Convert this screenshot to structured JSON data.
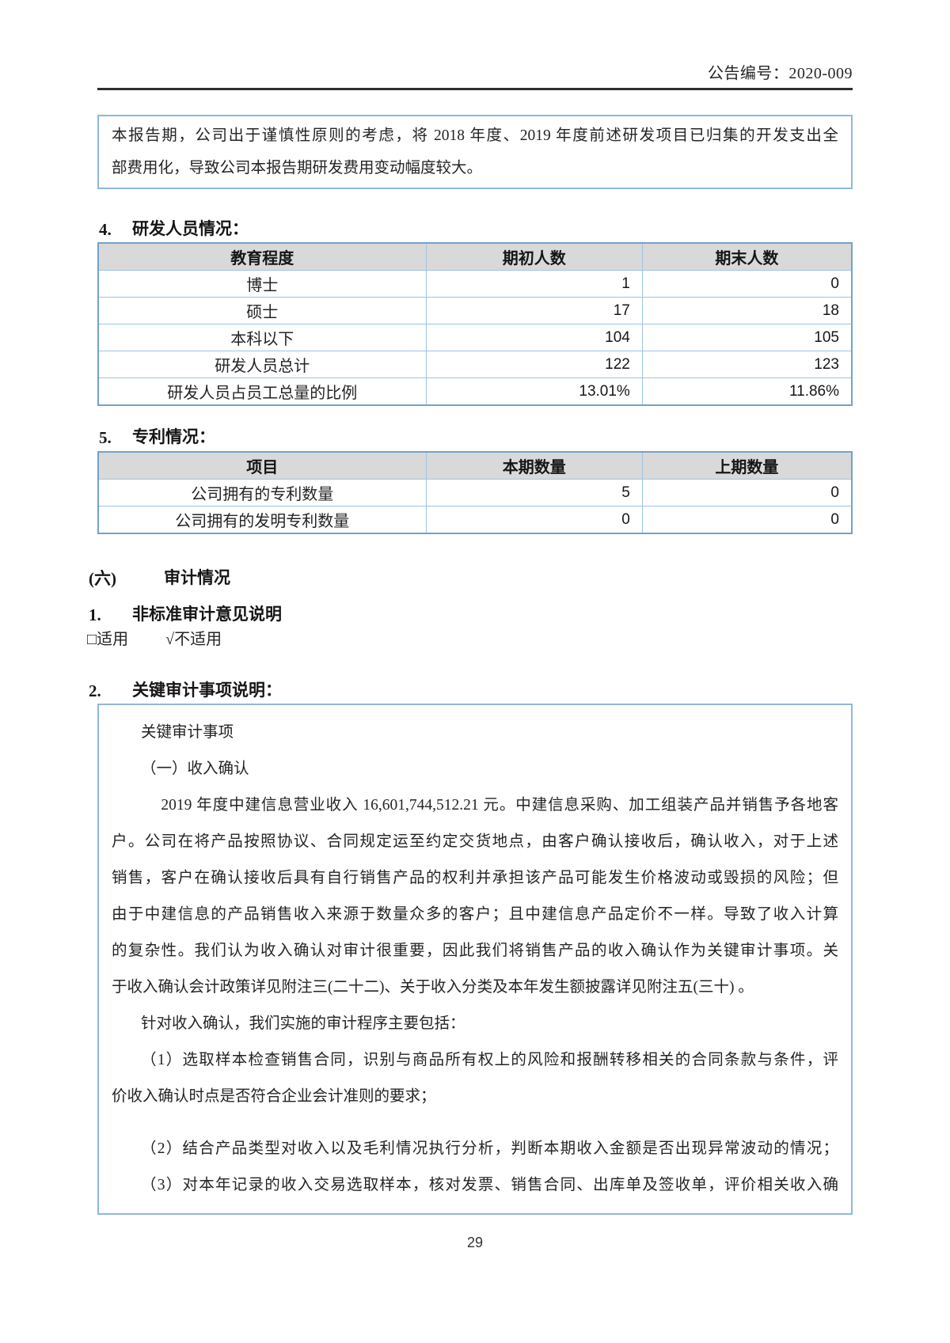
{
  "page": {
    "header_right": "公告编号：2020-009",
    "page_number": "29",
    "accent_border_color": "#8fb8dd",
    "table_header_bg": "#d9d9d9"
  },
  "notice_box": {
    "lines": [
      {
        "text": "本报告期，公司出于谨慎性原则的考虑，将 2018 年度、2019 年度前述研发项目已归集的开发支出全",
        "fill": true
      },
      {
        "text": "部费用化，导致公司本报告期研发费用变动幅度较大。"
      }
    ]
  },
  "section_rd_personnel": {
    "number": "4.",
    "title": "研发人员情况：",
    "table": {
      "headers": [
        "教育程度",
        "期初人数",
        "期末人数"
      ],
      "rows": [
        [
          "博士",
          "1",
          "0"
        ],
        [
          "硕士",
          "17",
          "18"
        ],
        [
          "本科以下",
          "104",
          "105"
        ],
        [
          "研发人员总计",
          "122",
          "123"
        ],
        [
          "研发人员占员工总量的比例",
          "13.01%",
          "11.86%"
        ]
      ]
    }
  },
  "section_patents": {
    "number": "5.",
    "title": "专利情况：",
    "table": {
      "headers": [
        "项目",
        "本期数量",
        "上期数量"
      ],
      "rows": [
        [
          "公司拥有的专利数量",
          "5",
          "0"
        ],
        [
          "公司拥有的发明专利数量",
          "0",
          "0"
        ]
      ]
    }
  },
  "section_audit": {
    "number": "(六)",
    "title": "审计情况"
  },
  "sub_nonstandard_opinion": {
    "number": "1.",
    "title": "非标准审计意见说明",
    "option_applicable": "□适用",
    "option_not_applicable": "√不适用"
  },
  "sub_key_audit_matters": {
    "number": "2.",
    "title": "关键审计事项说明："
  },
  "audit_box": {
    "lines": [
      {
        "text": "关键审计事项",
        "ind": 1.9
      },
      {
        "text": "（一）收入确认",
        "ind": 1.9
      },
      {
        "text": "2019 年度中建信息营业收入 16,601,744,512.21 元。中建信息采购、加工组装产品并销售予各地客",
        "ind": 3.2,
        "fill": true
      },
      {
        "text": "户。公司在将产品按照协议、合同规定运至约定交货地点，由客户确认接收后，确认收入，对于上述",
        "fill": true
      },
      {
        "text": "销售，客户在确认接收后具有自行销售产品的权利并承担该产品可能发生价格波动或毁损的风险；但",
        "fill": true
      },
      {
        "text": "由于中建信息的产品销售收入来源于数量众多的客户；且中建信息产品定价不一样。导致了收入计算",
        "fill": true
      },
      {
        "text": "的复杂性。我们认为收入确认对审计很重要，因此我们将销售产品的收入确认作为关键审计事项。关",
        "fill": true
      },
      {
        "text": "于收入确认会计政策详见附注三(二十二)、关于收入分类及本年发生额披露详见附注五(三十) 。"
      },
      {
        "text": "针对收入确认，我们实施的审计程序主要包括：",
        "ind": 1.9
      },
      {
        "text": "（1）选取样本检查销售合同，识别与商品所有权上的风险和报酬转移相关的合同条款与条件，评",
        "ind": 1.9,
        "fill": true
      },
      {
        "text": "价收入确认时点是否符合企业会计准则的要求；"
      },
      {
        "text": "（2）结合产品类型对收入以及毛利情况执行分析，判断本期收入金额是否出现异常波动的情况；",
        "ind": 1.9,
        "gap": true,
        "fill": true
      },
      {
        "text": "（3）对本年记录的收入交易选取样本，核对发票、销售合同、出库单及签收单，评价相关收入确",
        "ind": 1.9,
        "fill": true
      }
    ]
  }
}
